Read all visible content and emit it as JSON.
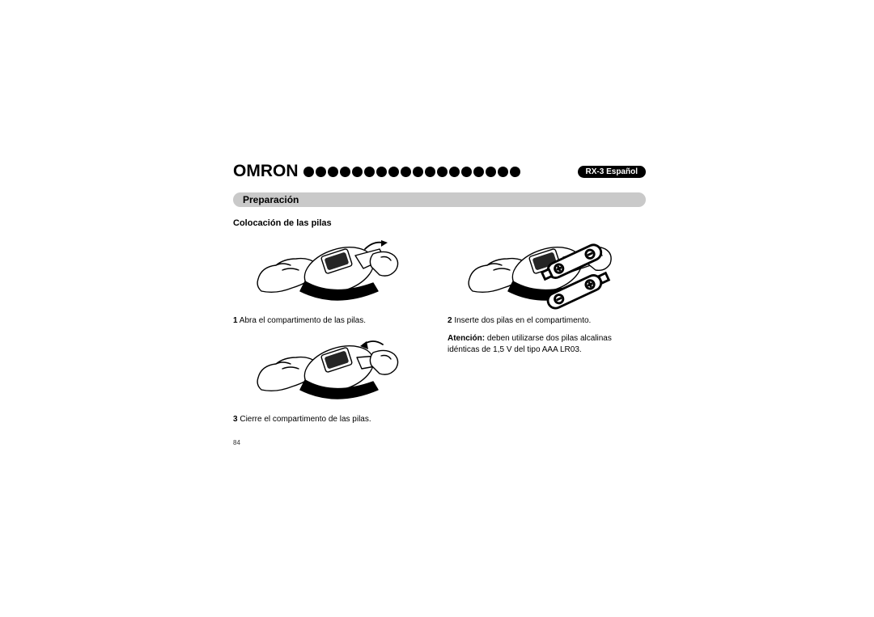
{
  "header": {
    "logo_text": "OMRON",
    "dot_count": 18,
    "badge": "RX-3 Español"
  },
  "section_title": "Preparación",
  "subheading": "Colocación de las pilas",
  "steps": {
    "s1": {
      "num": "1",
      "text": "Abra el compartimento de las pilas."
    },
    "s2": {
      "num": "2",
      "text": "Inserte dos pilas en el compartimento."
    },
    "s2b_bold": "Atención:",
    "s2b_rest": " deben utilizarse dos pilas alcalinas idénticas de 1,5 V del tipo AAA LR03.",
    "s3": {
      "num": "3",
      "text": "Cierre el compartimento de las pilas."
    }
  },
  "page_number": "84",
  "colors": {
    "section_bg": "#c9c9c9",
    "badge_bg": "#000000",
    "text": "#000000"
  }
}
